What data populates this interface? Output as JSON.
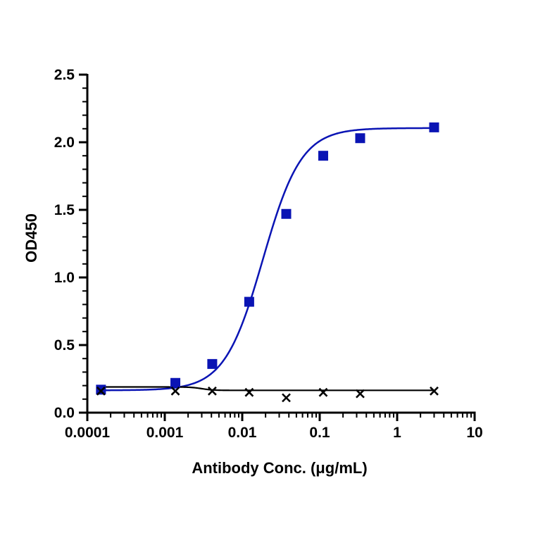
{
  "chart_data": {
    "type": "scatter",
    "title": "",
    "xlabel": "Antibody Conc. (μg/mL)",
    "ylabel": "OD450",
    "xscale": "log",
    "xlim": [
      0.0001,
      10
    ],
    "ylim": [
      0,
      2.5
    ],
    "x_ticks": [
      0.0001,
      0.001,
      0.01,
      0.1,
      1,
      10
    ],
    "x_tick_labels": [
      "0.0001",
      "0.001",
      "0.01",
      "0.1",
      "1",
      "10"
    ],
    "y_ticks": [
      0,
      0.5,
      1.0,
      1.5,
      2.0,
      2.5
    ],
    "y_tick_labels": [
      "0.0",
      "0.5",
      "1.0",
      "1.5",
      "2.0",
      "2.5"
    ],
    "grid": false,
    "legend": "none",
    "series": [
      {
        "marker": "square",
        "color": "#0a14b4",
        "x": [
          0.00015,
          0.00137,
          0.0041,
          0.0123,
          0.037,
          0.111,
          0.333,
          3.0
        ],
        "y": [
          0.17,
          0.22,
          0.36,
          0.82,
          1.47,
          1.9,
          2.03,
          2.11
        ],
        "fit": "4PL",
        "fit_params": {
          "bottom": 0.165,
          "top": 2.105,
          "ec50": 0.0185,
          "hill": 1.75
        }
      },
      {
        "marker": "x",
        "color": "#000000",
        "x": [
          0.00015,
          0.00137,
          0.0041,
          0.0123,
          0.037,
          0.111,
          0.333,
          3.0
        ],
        "y": [
          0.16,
          0.16,
          0.16,
          0.15,
          0.11,
          0.15,
          0.14,
          0.16
        ],
        "fit": "4PL",
        "fit_params": {
          "bottom": 0.165,
          "top": 0.19,
          "ec50": 0.003,
          "hill": -6
        }
      }
    ]
  }
}
